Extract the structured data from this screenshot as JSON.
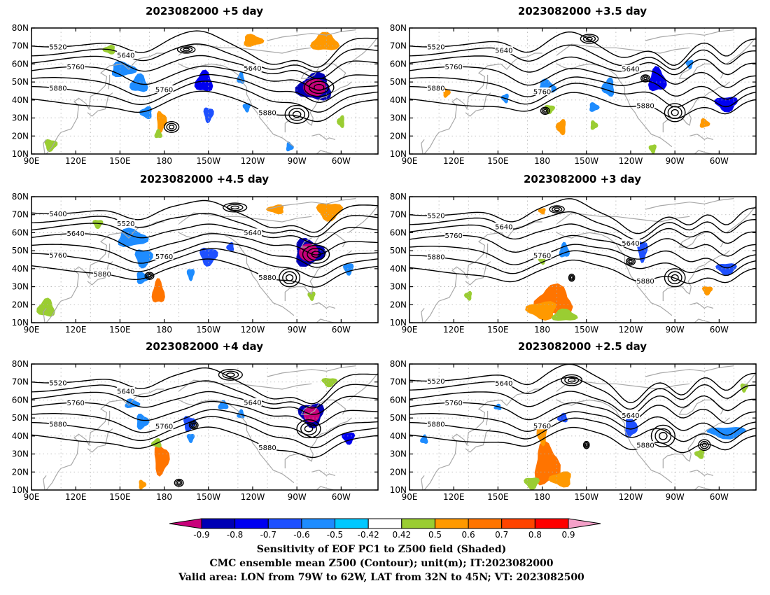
{
  "panels": [
    {
      "title": "2023082000 +5 day",
      "contour_labels": [
        "5520",
        "5640",
        "5640",
        "5760",
        "5760",
        "5880",
        "5880",
        "5880"
      ],
      "shades": [
        {
          "lon": 152,
          "lat": 57,
          "rx": 10,
          "ry": 5,
          "v": -0.5
        },
        {
          "lon": 163,
          "lat": 49,
          "rx": 7,
          "ry": 6,
          "v": -0.5
        },
        {
          "lon": 168,
          "lat": 33,
          "rx": 5,
          "ry": 4,
          "v": -0.5
        },
        {
          "lon": 178,
          "lat": 28,
          "rx": 4,
          "ry": 7,
          "v": 0.6
        },
        {
          "lon": 176,
          "lat": 21,
          "rx": 3,
          "ry": 3,
          "v": 0.5
        },
        {
          "lon": 210,
          "lat": 32,
          "rx": 4,
          "ry": 5,
          "v": -0.6
        },
        {
          "lon": 207,
          "lat": 50,
          "rx": 7,
          "ry": 7,
          "v": -0.7
        },
        {
          "lon": 232,
          "lat": 52,
          "rx": 3,
          "ry": 4,
          "v": -0.5
        },
        {
          "lon": 236,
          "lat": 36,
          "rx": 3,
          "ry": 3,
          "v": -0.5
        },
        {
          "lon": 282,
          "lat": 47,
          "rx": 14,
          "ry": 9,
          "v": -0.8
        },
        {
          "lon": 289,
          "lat": 72,
          "rx": 11,
          "ry": 6,
          "v": 0.6
        },
        {
          "lon": 240,
          "lat": 73,
          "rx": 8,
          "ry": 4,
          "v": 0.6
        },
        {
          "lon": 143,
          "lat": 68,
          "rx": 5,
          "ry": 3,
          "v": 0.5
        },
        {
          "lon": 300,
          "lat": 28,
          "rx": 3,
          "ry": 4,
          "v": 0.5
        },
        {
          "lon": 103,
          "lat": 15,
          "rx": 5,
          "ry": 4,
          "v": 0.5
        },
        {
          "lon": 265,
          "lat": 14,
          "rx": 3,
          "ry": 3,
          "v": -0.5
        }
      ]
    },
    {
      "title": "2023082000 +4.5 day",
      "contour_labels": [
        "5400",
        "5520",
        "5640",
        "5640",
        "5760",
        "5760",
        "5880",
        "5880",
        "5880"
      ],
      "shades": [
        {
          "lon": 158,
          "lat": 57,
          "rx": 12,
          "ry": 6,
          "v": -0.5
        },
        {
          "lon": 166,
          "lat": 46,
          "rx": 7,
          "ry": 6,
          "v": -0.5
        },
        {
          "lon": 165,
          "lat": 35,
          "rx": 5,
          "ry": 4,
          "v": -0.5
        },
        {
          "lon": 176,
          "lat": 27,
          "rx": 5,
          "ry": 8,
          "v": 0.7
        },
        {
          "lon": 198,
          "lat": 37,
          "rx": 3,
          "ry": 4,
          "v": -0.5
        },
        {
          "lon": 210,
          "lat": 47,
          "rx": 7,
          "ry": 6,
          "v": -0.6
        },
        {
          "lon": 225,
          "lat": 52,
          "rx": 3,
          "ry": 3,
          "v": -0.6
        },
        {
          "lon": 278,
          "lat": 49,
          "rx": 12,
          "ry": 9,
          "v": -0.8
        },
        {
          "lon": 292,
          "lat": 72,
          "rx": 10,
          "ry": 6,
          "v": 0.6
        },
        {
          "lon": 256,
          "lat": 73,
          "rx": 7,
          "ry": 3,
          "v": 0.6
        },
        {
          "lon": 280,
          "lat": 25,
          "rx": 3,
          "ry": 3,
          "v": 0.5
        },
        {
          "lon": 305,
          "lat": 40,
          "rx": 4,
          "ry": 4,
          "v": -0.5
        },
        {
          "lon": 100,
          "lat": 18,
          "rx": 7,
          "ry": 6,
          "v": 0.5
        },
        {
          "lon": 135,
          "lat": 65,
          "rx": 4,
          "ry": 3,
          "v": 0.5
        }
      ]
    },
    {
      "title": "2023082000 +4 day",
      "contour_labels": [
        "5520",
        "5640",
        "5640",
        "5760",
        "5760",
        "5880",
        "5880",
        "5880"
      ],
      "shades": [
        {
          "lon": 158,
          "lat": 58,
          "rx": 6,
          "ry": 3,
          "v": -0.5
        },
        {
          "lon": 165,
          "lat": 48,
          "rx": 5,
          "ry": 5,
          "v": -0.5
        },
        {
          "lon": 178,
          "lat": 27,
          "rx": 6,
          "ry": 10,
          "v": 0.7
        },
        {
          "lon": 175,
          "lat": 36,
          "rx": 4,
          "ry": 3,
          "v": 0.5
        },
        {
          "lon": 197,
          "lat": 47,
          "rx": 5,
          "ry": 5,
          "v": -0.6
        },
        {
          "lon": 198,
          "lat": 39,
          "rx": 3,
          "ry": 3,
          "v": -0.5
        },
        {
          "lon": 232,
          "lat": 52,
          "rx": 3,
          "ry": 3,
          "v": -0.5
        },
        {
          "lon": 280,
          "lat": 52,
          "rx": 10,
          "ry": 8,
          "v": -0.8
        },
        {
          "lon": 305,
          "lat": 39,
          "rx": 5,
          "ry": 4,
          "v": -0.7
        },
        {
          "lon": 220,
          "lat": 57,
          "rx": 4,
          "ry": 3,
          "v": -0.5
        },
        {
          "lon": 165,
          "lat": 13,
          "rx": 3,
          "ry": 3,
          "v": 0.6
        },
        {
          "lon": 292,
          "lat": 70,
          "rx": 6,
          "ry": 3,
          "v": 0.5
        }
      ]
    },
    {
      "title": "2023082000 +3.5 day",
      "contour_labels": [
        "5520",
        "5640",
        "5640",
        "5760",
        "5760",
        "5880",
        "5880",
        "5880"
      ],
      "shades": [
        {
          "lon": 183,
          "lat": 47,
          "rx": 7,
          "ry": 5,
          "v": -0.5
        },
        {
          "lon": 225,
          "lat": 47,
          "rx": 5,
          "ry": 6,
          "v": -0.5
        },
        {
          "lon": 215,
          "lat": 36,
          "rx": 4,
          "ry": 3,
          "v": -0.5
        },
        {
          "lon": 258,
          "lat": 51,
          "rx": 7,
          "ry": 8,
          "v": -0.7
        },
        {
          "lon": 305,
          "lat": 38,
          "rx": 9,
          "ry": 5,
          "v": -0.7
        },
        {
          "lon": 290,
          "lat": 27,
          "rx": 4,
          "ry": 3,
          "v": 0.6
        },
        {
          "lon": 193,
          "lat": 25,
          "rx": 4,
          "ry": 5,
          "v": 0.6
        },
        {
          "lon": 185,
          "lat": 35,
          "rx": 4,
          "ry": 3,
          "v": 0.5
        },
        {
          "lon": 215,
          "lat": 26,
          "rx": 3,
          "ry": 3,
          "v": 0.5
        },
        {
          "lon": 155,
          "lat": 41,
          "rx": 3,
          "ry": 3,
          "v": -0.5
        },
        {
          "lon": 115,
          "lat": 44,
          "rx": 3,
          "ry": 3,
          "v": 0.6
        },
        {
          "lon": 255,
          "lat": 13,
          "rx": 3,
          "ry": 3,
          "v": 0.5
        },
        {
          "lon": 280,
          "lat": 60,
          "rx": 3,
          "ry": 3,
          "v": -0.5
        }
      ]
    },
    {
      "title": "2023082000 +3 day",
      "contour_labels": [
        "5520",
        "5640",
        "5640",
        "5760",
        "5760",
        "5880",
        "5880"
      ],
      "shades": [
        {
          "lon": 188,
          "lat": 22,
          "rx": 15,
          "ry": 10,
          "v": 0.7
        },
        {
          "lon": 180,
          "lat": 17,
          "rx": 12,
          "ry": 6,
          "v": 0.6
        },
        {
          "lon": 195,
          "lat": 14,
          "rx": 10,
          "ry": 4,
          "v": 0.5
        },
        {
          "lon": 195,
          "lat": 50,
          "rx": 4,
          "ry": 5,
          "v": -0.5
        },
        {
          "lon": 248,
          "lat": 50,
          "rx": 4,
          "ry": 7,
          "v": -0.6
        },
        {
          "lon": 305,
          "lat": 40,
          "rx": 8,
          "ry": 4,
          "v": -0.6
        },
        {
          "lon": 292,
          "lat": 28,
          "rx": 4,
          "ry": 3,
          "v": 0.6
        },
        {
          "lon": 180,
          "lat": 72,
          "rx": 3,
          "ry": 2,
          "v": 0.6
        },
        {
          "lon": 130,
          "lat": 25,
          "rx": 3,
          "ry": 3,
          "v": 0.5
        },
        {
          "lon": 180,
          "lat": 45,
          "rx": 3,
          "ry": 3,
          "v": 0.5
        }
      ]
    },
    {
      "title": "2023082000 +2.5 day",
      "contour_labels": [
        "5520",
        "5640",
        "5640",
        "5760",
        "5760",
        "5880",
        "5880",
        "5880"
      ],
      "shades": [
        {
          "lon": 183,
          "lat": 24,
          "rx": 10,
          "ry": 14,
          "v": 0.7
        },
        {
          "lon": 180,
          "lat": 41,
          "rx": 4,
          "ry": 7,
          "v": 0.6
        },
        {
          "lon": 193,
          "lat": 16,
          "rx": 9,
          "ry": 5,
          "v": 0.6
        },
        {
          "lon": 173,
          "lat": 14,
          "rx": 6,
          "ry": 4,
          "v": 0.5
        },
        {
          "lon": 194,
          "lat": 50,
          "rx": 4,
          "ry": 3,
          "v": -0.6
        },
        {
          "lon": 240,
          "lat": 45,
          "rx": 5,
          "ry": 7,
          "v": -0.6
        },
        {
          "lon": 305,
          "lat": 42,
          "rx": 15,
          "ry": 4,
          "v": -0.5
        },
        {
          "lon": 287,
          "lat": 30,
          "rx": 4,
          "ry": 3,
          "v": 0.5
        },
        {
          "lon": 100,
          "lat": 38,
          "rx": 3,
          "ry": 3,
          "v": -0.5
        },
        {
          "lon": 150,
          "lat": 56,
          "rx": 3,
          "ry": 2,
          "v": -0.5
        },
        {
          "lon": 317,
          "lat": 67,
          "rx": 3,
          "ry": 3,
          "v": 0.5
        }
      ]
    }
  ],
  "lat_ticks": [
    "80N",
    "70N",
    "60N",
    "50N",
    "40N",
    "30N",
    "20N",
    "10N"
  ],
  "lon_ticks": [
    "90E",
    "120E",
    "150E",
    "180",
    "150W",
    "120W",
    "90W",
    "60W"
  ],
  "colorbar": {
    "labels": [
      "-0.9",
      "-0.8",
      "-0.7",
      "-0.6",
      "-0.5",
      "-0.42",
      "0.42",
      "0.5",
      "0.6",
      "0.7",
      "0.8",
      "0.9"
    ],
    "colors": [
      "#c8007a",
      "#0000b4",
      "#0000f0",
      "#1e50ff",
      "#1e8cff",
      "#00c8ff",
      "#ffffff",
      "#9acd32",
      "#ff9900",
      "#ff7400",
      "#ff4400",
      "#ff0000",
      "#f4a0c8"
    ]
  },
  "footer": [
    "Sensitivity of EOF PC1 to Z500 field (Shaded)",
    "CMC ensemble mean Z500 (Contour); unit(m); IT:2023082000",
    "Valid area: LON from 79W to 62W, LAT from 32N to 45N; VT: 2023082500"
  ]
}
